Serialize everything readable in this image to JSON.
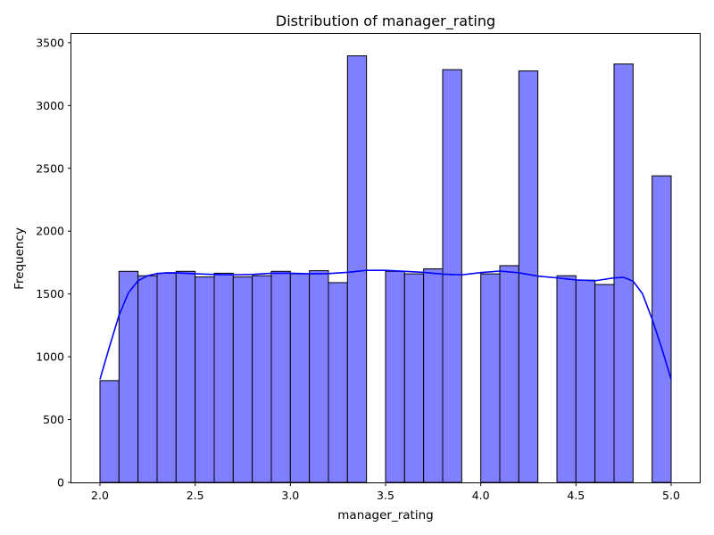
{
  "chart_data": {
    "type": "bar",
    "title": "Distribution of manager_rating",
    "xlabel": "manager_rating",
    "ylabel": "Frequency",
    "xlim": [
      1.85,
      5.15
    ],
    "ylim": [
      0,
      3570
    ],
    "xticks": [
      "2.0",
      "2.5",
      "3.0",
      "3.5",
      "4.0",
      "4.5",
      "5.0"
    ],
    "yticks": [
      "0",
      "500",
      "1000",
      "1500",
      "2000",
      "2500",
      "3000",
      "3500"
    ],
    "bar_color": "#8080ff",
    "bar_edge_color": "#000000",
    "kde_color": "#0000ff",
    "bins": [
      {
        "x0": 2.0,
        "x1": 2.1,
        "count": 810
      },
      {
        "x0": 2.1,
        "x1": 2.2,
        "count": 1680
      },
      {
        "x0": 2.2,
        "x1": 2.3,
        "count": 1645
      },
      {
        "x0": 2.3,
        "x1": 2.4,
        "count": 1665
      },
      {
        "x0": 2.4,
        "x1": 2.5,
        "count": 1680
      },
      {
        "x0": 2.5,
        "x1": 2.6,
        "count": 1635
      },
      {
        "x0": 2.6,
        "x1": 2.7,
        "count": 1665
      },
      {
        "x0": 2.7,
        "x1": 2.8,
        "count": 1635
      },
      {
        "x0": 2.8,
        "x1": 2.9,
        "count": 1645
      },
      {
        "x0": 2.9,
        "x1": 3.0,
        "count": 1680
      },
      {
        "x0": 3.0,
        "x1": 3.1,
        "count": 1660
      },
      {
        "x0": 3.1,
        "x1": 3.2,
        "count": 1685
      },
      {
        "x0": 3.2,
        "x1": 3.3,
        "count": 1590
      },
      {
        "x0": 3.3,
        "x1": 3.4,
        "count": 3395
      },
      {
        "x0": 3.4,
        "x1": 3.5,
        "count": 0
      },
      {
        "x0": 3.5,
        "x1": 3.6,
        "count": 1680
      },
      {
        "x0": 3.6,
        "x1": 3.7,
        "count": 1660
      },
      {
        "x0": 3.7,
        "x1": 3.8,
        "count": 1700
      },
      {
        "x0": 3.8,
        "x1": 3.9,
        "count": 3285
      },
      {
        "x0": 3.9,
        "x1": 4.0,
        "count": 0
      },
      {
        "x0": 4.0,
        "x1": 4.1,
        "count": 1660
      },
      {
        "x0": 4.1,
        "x1": 4.2,
        "count": 1725
      },
      {
        "x0": 4.2,
        "x1": 4.3,
        "count": 3275
      },
      {
        "x0": 4.3,
        "x1": 4.4,
        "count": 0
      },
      {
        "x0": 4.4,
        "x1": 4.5,
        "count": 1645
      },
      {
        "x0": 4.5,
        "x1": 4.6,
        "count": 1610
      },
      {
        "x0": 4.6,
        "x1": 4.7,
        "count": 1575
      },
      {
        "x0": 4.7,
        "x1": 4.8,
        "count": 3330
      },
      {
        "x0": 4.8,
        "x1": 4.9,
        "count": 0
      },
      {
        "x0": 4.9,
        "x1": 5.0,
        "count": 2440
      }
    ],
    "kde": {
      "x": [
        2.0,
        2.05,
        2.1,
        2.15,
        2.2,
        2.25,
        2.3,
        2.35,
        2.4,
        2.5,
        2.6,
        2.7,
        2.8,
        2.9,
        3.0,
        3.1,
        3.2,
        3.3,
        3.4,
        3.5,
        3.6,
        3.7,
        3.8,
        3.9,
        4.0,
        4.1,
        4.2,
        4.3,
        4.4,
        4.5,
        4.6,
        4.7,
        4.75,
        4.8,
        4.85,
        4.9,
        4.95,
        5.0
      ],
      "y": [
        820,
        1080,
        1330,
        1510,
        1605,
        1645,
        1662,
        1668,
        1668,
        1660,
        1655,
        1652,
        1655,
        1665,
        1665,
        1660,
        1662,
        1672,
        1688,
        1688,
        1680,
        1672,
        1658,
        1652,
        1670,
        1682,
        1668,
        1642,
        1628,
        1612,
        1605,
        1628,
        1632,
        1602,
        1500,
        1300,
        1070,
        820
      ]
    }
  }
}
